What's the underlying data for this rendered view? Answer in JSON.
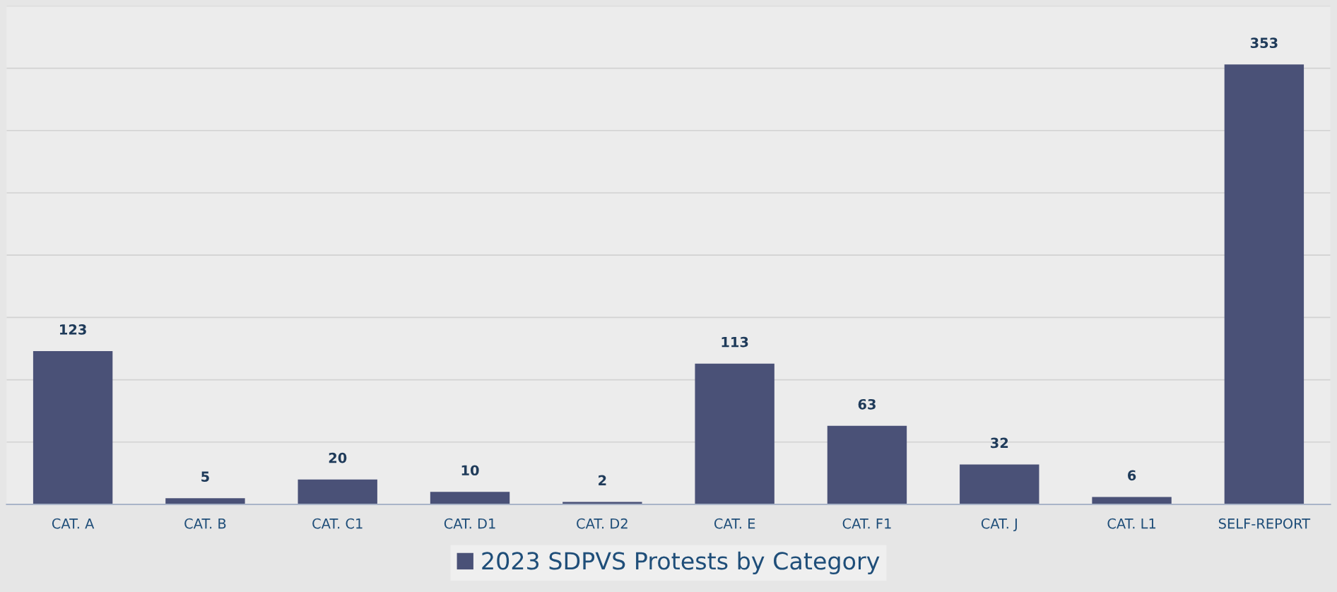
{
  "chart_data": {
    "type": "bar",
    "categories": [
      "CAT. A",
      "CAT. B",
      "CAT. C1",
      "CAT. D1",
      "CAT. D2",
      "CAT. E",
      "CAT. F1",
      "CAT. J",
      "CAT. L1",
      "SELF-REPORT"
    ],
    "series": [
      {
        "name": "2023 SDPVS Protests by Category",
        "color": "#4a5177",
        "values": [
          123,
          5,
          20,
          10,
          2,
          113,
          63,
          32,
          6,
          353
        ]
      }
    ],
    "ylim": [
      0,
      400
    ],
    "yticks": [
      {
        "value": 0,
        "label": null
      },
      {
        "value": 50,
        "label": null
      },
      {
        "value": 100,
        "label": null
      },
      {
        "value": 150,
        "label": null
      },
      {
        "value": 200,
        "label": null
      },
      {
        "value": 250,
        "label": null
      },
      {
        "value": 300,
        "label": null
      },
      {
        "value": 350,
        "label": null
      },
      {
        "value": 400,
        "label": null
      }
    ],
    "tick_labels": "x",
    "grid": "y",
    "data_labels": true,
    "legend": "bottom"
  }
}
